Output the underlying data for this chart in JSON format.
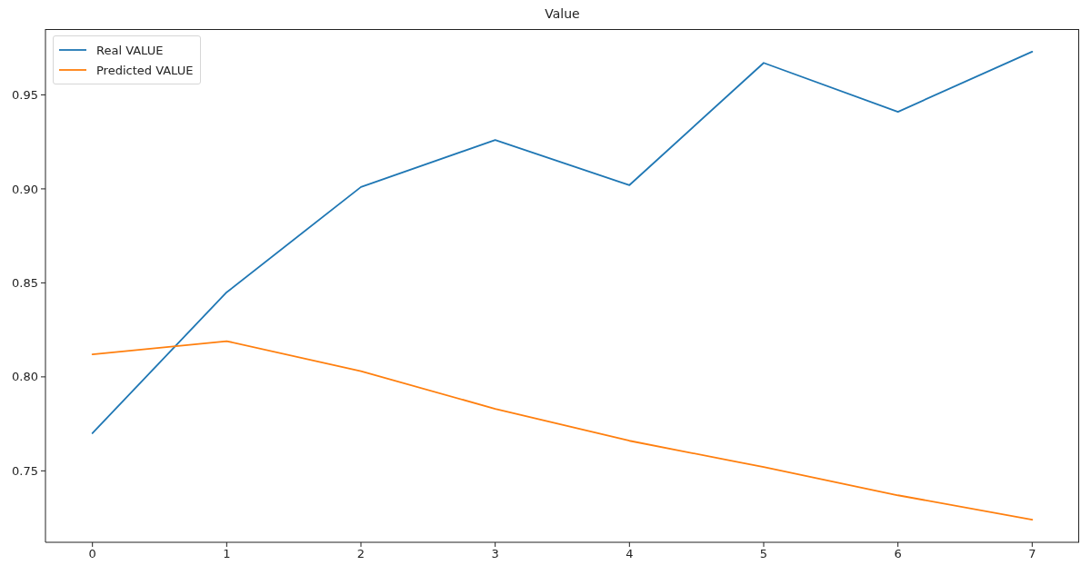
{
  "chart_data": {
    "type": "line",
    "title": "Value",
    "x": [
      0,
      1,
      2,
      3,
      4,
      5,
      6,
      7
    ],
    "series": [
      {
        "name": "Real VALUE",
        "color": "#1f77b4",
        "values": [
          0.77,
          0.845,
          0.901,
          0.926,
          0.902,
          0.967,
          0.941,
          0.973
        ]
      },
      {
        "name": "Predicted VALUE",
        "color": "#ff7f0e",
        "values": [
          0.812,
          0.819,
          0.803,
          0.783,
          0.766,
          0.752,
          0.737,
          0.724
        ]
      }
    ],
    "xlim": [
      -0.35,
      7.35
    ],
    "xticks": [
      0,
      1,
      2,
      3,
      4,
      5,
      6,
      7
    ],
    "ylim": [
      0.712,
      0.985
    ],
    "yticks": [
      0.75,
      {
        "value": 0.8,
        "label": "0.80"
      },
      0.85,
      {
        "value": 0.9,
        "label": "0.90"
      },
      0.95
    ],
    "legend": "top left",
    "line_style": "solid"
  }
}
